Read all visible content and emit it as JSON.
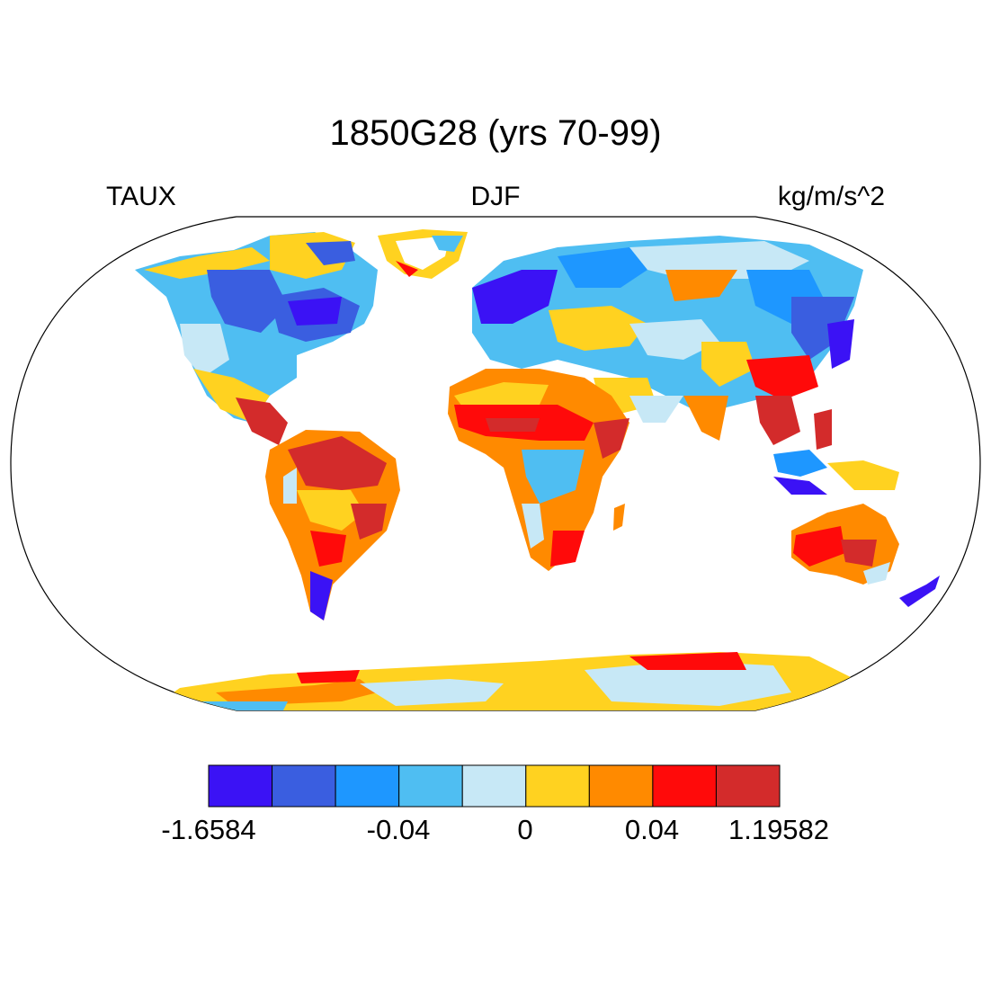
{
  "title": "1850G28 (yrs 70-99)",
  "left_string": "TAUX",
  "center_string": "DJF",
  "right_string": "kg/m/s^2",
  "colorbar": {
    "colors": [
      "#3b12f5",
      "#3a5ee0",
      "#1e97ff",
      "#4fbef2",
      "#c7e8f6",
      "#ffd220",
      "#ff8a00",
      "#ff0a0a",
      "#d32b2b"
    ],
    "labels": [
      "-1.6584",
      "-0.04",
      "0",
      "0.04",
      "1.19582"
    ]
  },
  "map": {
    "projection": "Robinson",
    "land_only": true,
    "colors": {
      "deep_neg": "#3b12f5",
      "strong_neg": "#3a5ee0",
      "mid_neg": "#1e97ff",
      "light_neg": "#4fbef2",
      "near_zero": "#c7e8f6",
      "weak_pos": "#ffd220",
      "mid_pos": "#ff8a00",
      "strong_pos": "#ff0a0a",
      "deep_pos": "#d32b2b"
    }
  }
}
